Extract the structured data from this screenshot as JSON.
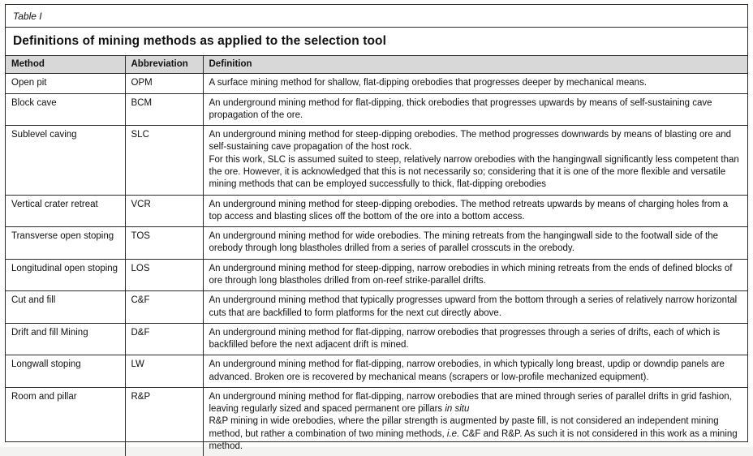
{
  "caption": "Table I",
  "title": "Definitions of mining methods as applied to the selection tool",
  "table": {
    "columns": [
      "Method",
      "Abbreviation",
      "Definition"
    ],
    "rows": [
      {
        "method": "Open pit",
        "abbreviation": "OPM",
        "definition": [
          "A surface mining method for shallow, flat-dipping orebodies that progresses deeper by mechanical means."
        ]
      },
      {
        "method": "Block cave",
        "abbreviation": "BCM",
        "definition": [
          "An underground mining method for flat-dipping, thick orebodies that progresses upwards by means of self-sustaining cave propagation of the ore."
        ]
      },
      {
        "method": "Sublevel caving",
        "abbreviation": "SLC",
        "definition": [
          "An underground mining method for steep-dipping orebodies. The method progresses downwards by means of blasting ore and self-sustaining cave propagation of the host rock.",
          "For this work, SLC is assumed suited to steep, relatively narrow orebodies with the hangingwall significantly less competent than the ore. However, it is acknowledged that this is not necessarily so; considering that it is one of the more flexible and versatile mining methods that can be employed successfully to thick, flat-dipping orebodies"
        ]
      },
      {
        "method": "Vertical crater retreat",
        "abbreviation": "VCR",
        "definition": [
          "An underground mining method for steep-dipping orebodies. The method retreats upwards by means of charging holes from a top access and blasting slices off the bottom of the ore into a bottom access."
        ]
      },
      {
        "method": "Transverse open stoping",
        "abbreviation": "TOS",
        "definition": [
          "An underground mining method for wide orebodies. The mining retreats from the hangingwall side to the footwall side of the orebody through long blastholes drilled from a series of parallel crosscuts in the orebody."
        ]
      },
      {
        "method": "Longitudinal open stoping",
        "abbreviation": "LOS",
        "definition": [
          "An underground mining method for steep-dipping, narrow orebodies in which mining retreats from the ends of defined blocks of ore through long blastholes drilled from on-reef strike-parallel drifts."
        ]
      },
      {
        "method": "Cut and fill",
        "abbreviation": "C&F",
        "definition": [
          "An underground mining method that typically progresses upward from the bottom through a series of relatively narrow horizontal cuts that are backfilled to form platforms for the next cut directly above."
        ]
      },
      {
        "method": "Drift and fill Mining",
        "abbreviation": "D&F",
        "definition": [
          "An underground mining method for flat-dipping, narrow orebodies that progresses through a series of drifts, each of which is backfilled before the next adjacent drift is mined."
        ]
      },
      {
        "method": "Longwall stoping",
        "abbreviation": "LW",
        "definition": [
          "An underground mining method for flat-dipping, narrow orebodies, in which typically long breast, updip or downdip panels are advanced. Broken ore is recovered by mechanical means (scrapers or low-profile mechanized equipment)."
        ]
      },
      {
        "method": "Room and pillar",
        "abbreviation": "R&P",
        "definition": [
          "An underground mining method for flat-dipping, narrow orebodies that are mined through series of parallel drifts in grid fashion, leaving regularly sized and spaced permanent ore pillars *in situ*",
          "R&P mining in wide orebodies, where the pillar strength is augmented by paste fill, is not considered an independent mining method, but rather a combination of two mining methods, *i.e.* C&F and R&P. As such it is not considered in this work as a mining method."
        ]
      }
    ]
  }
}
